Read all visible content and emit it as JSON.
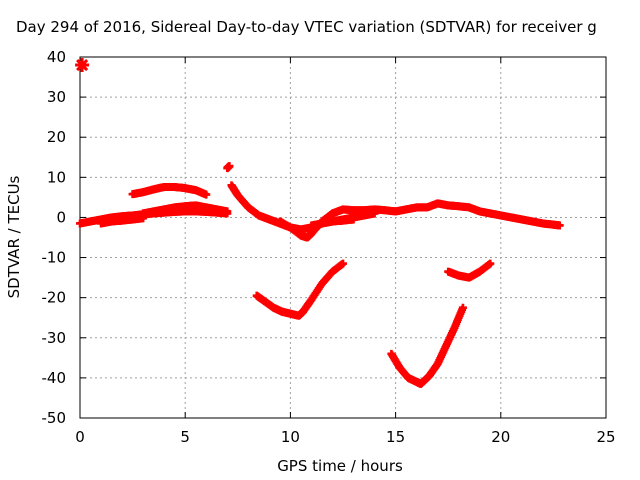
{
  "chart_data": {
    "type": "scatter",
    "title": "Day 294 of 2016, Sidereal Day-to-day VTEC variation (SDTVAR) for receiver g",
    "xlabel": "GPS time / hours",
    "ylabel": "SDTVAR / TECUs",
    "xlim": [
      0,
      25
    ],
    "ylim": [
      -50,
      40
    ],
    "xticks": [
      0,
      5,
      10,
      15,
      20,
      25
    ],
    "yticks": [
      -50,
      -40,
      -30,
      -20,
      -10,
      0,
      10,
      20,
      30,
      40
    ],
    "grid": true,
    "legend": "none",
    "marker_color": "#ff0000",
    "series": [
      {
        "x": [
          0.0,
          0.5,
          1.0,
          1.5,
          2.0,
          2.5,
          3.0,
          3.5,
          4.0,
          4.5,
          5.0,
          5.5,
          6.0,
          6.5,
          7.0
        ],
        "values": [
          -1.5,
          -1.0,
          -0.5,
          0.0,
          0.3,
          0.5,
          0.8,
          1.0,
          1.2,
          1.4,
          1.5,
          1.5,
          1.4,
          1.2,
          1.0
        ]
      },
      {
        "x": [
          3.0,
          3.5,
          4.0,
          4.5,
          5.0,
          5.5,
          6.0,
          6.5,
          7.0
        ],
        "values": [
          1.0,
          1.5,
          2.0,
          2.5,
          2.8,
          3.0,
          2.5,
          2.0,
          1.5
        ]
      },
      {
        "x": [
          1.0,
          1.5,
          2.0,
          2.5,
          3.0
        ],
        "values": [
          -1.5,
          -1.0,
          -0.8,
          -0.5,
          -0.2
        ]
      },
      {
        "x": [
          2.5,
          3.0,
          3.5,
          4.0,
          4.5,
          5.0,
          5.5,
          6.0
        ],
        "values": [
          5.8,
          6.3,
          7.0,
          7.6,
          7.6,
          7.3,
          6.8,
          5.7
        ]
      },
      {
        "x": [
          0.1
        ],
        "values": [
          38.0
        ]
      },
      {
        "x": [
          7.0,
          7.1
        ],
        "values": [
          12.3,
          12.8
        ]
      },
      {
        "x": [
          7.2,
          7.5,
          8.0,
          8.5,
          9.0,
          9.5,
          10.0,
          10.5,
          11.0,
          11.5,
          12.0,
          12.5,
          13.0
        ],
        "values": [
          8.0,
          5.5,
          2.5,
          0.5,
          -0.5,
          -1.5,
          -2.5,
          -3.0,
          -2.5,
          -1.5,
          -1.0,
          -0.8,
          -0.5
        ]
      },
      {
        "x": [
          9.5,
          10.0,
          10.5,
          10.8,
          11.0,
          11.5,
          12.0,
          12.5,
          13.0,
          13.5,
          14.0,
          14.5,
          15.0,
          15.5,
          16.0,
          16.5,
          17.0,
          17.5,
          18.0,
          18.5,
          19.0,
          19.5,
          20.0,
          20.5,
          21.0,
          21.5,
          22.0,
          22.5,
          22.8
        ],
        "values": [
          -1.0,
          -2.5,
          -4.5,
          -5.0,
          -4.0,
          -1.0,
          1.0,
          2.0,
          1.8,
          1.8,
          2.0,
          1.8,
          1.5,
          2.0,
          2.5,
          2.5,
          3.5,
          3.0,
          2.8,
          2.5,
          1.5,
          1.0,
          0.5,
          0.0,
          -0.5,
          -1.0,
          -1.5,
          -1.8,
          -2.0
        ]
      },
      {
        "x": [
          11.0,
          11.5,
          12.0,
          12.5,
          13.0,
          13.5,
          14.0
        ],
        "values": [
          -2.0,
          -1.5,
          -1.0,
          -0.5,
          0.0,
          0.5,
          1.0
        ]
      },
      {
        "x": [
          8.4,
          8.8,
          9.2,
          9.6,
          10.0,
          10.4,
          10.6,
          11.0,
          11.5,
          12.0,
          12.5
        ],
        "values": [
          -19.5,
          -21.0,
          -22.5,
          -23.5,
          -24.0,
          -24.5,
          -23.5,
          -20.5,
          -16.5,
          -13.5,
          -11.5
        ]
      },
      {
        "x": [
          14.8,
          15.2,
          15.6,
          16.0,
          16.2,
          16.6,
          17.0,
          17.4,
          17.8,
          18.2
        ],
        "values": [
          -34.0,
          -37.5,
          -40.0,
          -41.0,
          -41.5,
          -39.5,
          -36.5,
          -32.0,
          -27.5,
          -22.5
        ]
      },
      {
        "x": [
          17.5,
          18.0,
          18.5,
          19.0,
          19.5
        ],
        "values": [
          -13.5,
          -14.5,
          -15.0,
          -13.5,
          -11.5
        ]
      }
    ]
  }
}
